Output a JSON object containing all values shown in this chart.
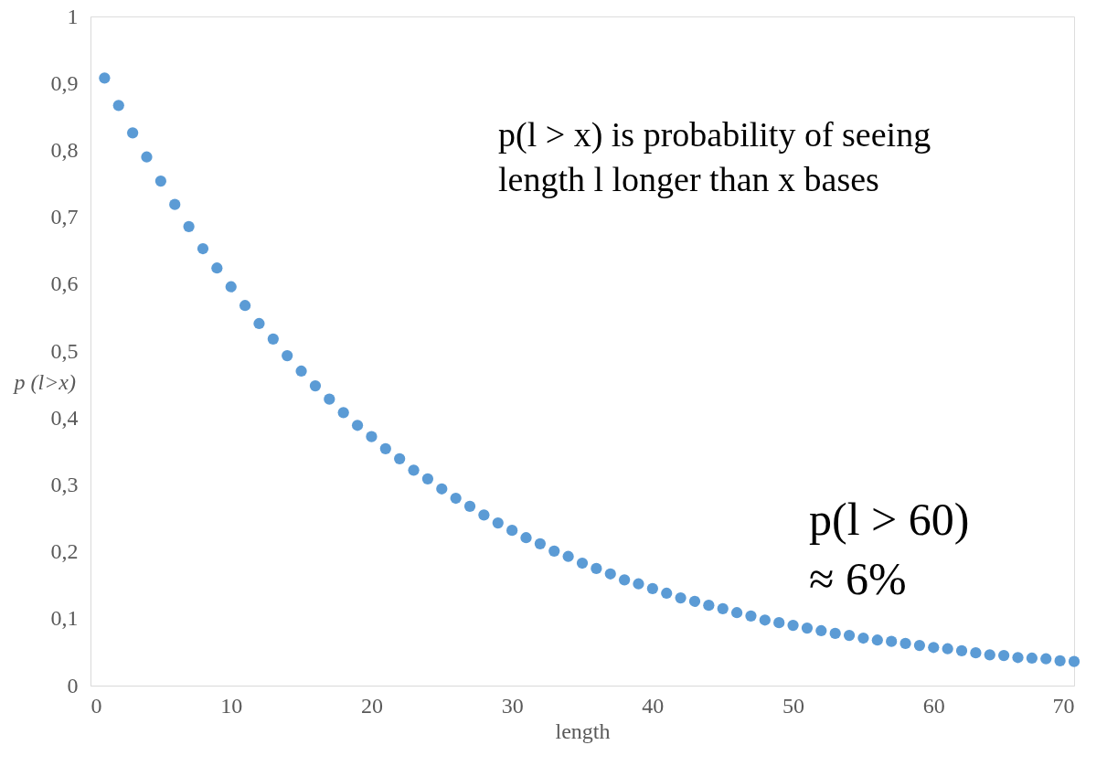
{
  "chart_data": {
    "type": "scatter",
    "xlabel": "length",
    "ylabel": "p (l>x)",
    "x": [
      1,
      2,
      3,
      4,
      5,
      6,
      7,
      8,
      9,
      10,
      11,
      12,
      13,
      14,
      15,
      16,
      17,
      18,
      19,
      20,
      21,
      22,
      23,
      24,
      25,
      26,
      27,
      28,
      29,
      30,
      31,
      32,
      33,
      34,
      35,
      36,
      37,
      38,
      39,
      40,
      41,
      42,
      43,
      44,
      45,
      46,
      47,
      48,
      49,
      50,
      51,
      52,
      53,
      54,
      55,
      56,
      57,
      58,
      59,
      60,
      61,
      62,
      63,
      64,
      65,
      66,
      67,
      68,
      69,
      70
    ],
    "series": [
      {
        "color": "#5b9bd5",
        "values": [
          0.908,
          0.867,
          0.826,
          0.79,
          0.754,
          0.719,
          0.686,
          0.653,
          0.624,
          0.596,
          0.568,
          0.541,
          0.518,
          0.493,
          0.47,
          0.448,
          0.428,
          0.408,
          0.389,
          0.372,
          0.354,
          0.339,
          0.322,
          0.309,
          0.294,
          0.28,
          0.268,
          0.255,
          0.243,
          0.232,
          0.221,
          0.212,
          0.201,
          0.193,
          0.183,
          0.175,
          0.167,
          0.158,
          0.152,
          0.145,
          0.138,
          0.131,
          0.126,
          0.12,
          0.115,
          0.109,
          0.104,
          0.098,
          0.094,
          0.09,
          0.086,
          0.082,
          0.078,
          0.075,
          0.071,
          0.068,
          0.066,
          0.063,
          0.06,
          0.057,
          0.055,
          0.052,
          0.049,
          0.046,
          0.045,
          0.042,
          0.041,
          0.04,
          0.037,
          0.036
        ]
      }
    ],
    "xlim": [
      0,
      70
    ],
    "xticks": [
      0,
      10,
      20,
      30,
      40,
      50,
      60,
      70
    ],
    "ylim": [
      0,
      1
    ],
    "yticks": [
      0,
      {
        "value": 0.1,
        "label": "0,1"
      },
      {
        "value": 0.2,
        "label": "0,2"
      },
      {
        "value": 0.3,
        "label": "0,3"
      },
      {
        "value": 0.4,
        "label": "0,4"
      },
      {
        "value": 0.5,
        "label": "0,5"
      },
      {
        "value": 0.6,
        "label": "0,6"
      },
      {
        "value": 0.7,
        "label": "0,7"
      },
      {
        "value": 0.8,
        "label": "0,8"
      },
      {
        "value": 0.9,
        "label": "0,9"
      },
      1
    ],
    "annotations": [
      "p(l > x) is probability of seeing\nlength l longer than x bases",
      "p(l > 60)\n≈ 6%"
    ],
    "marker": "circle",
    "grid": false
  }
}
